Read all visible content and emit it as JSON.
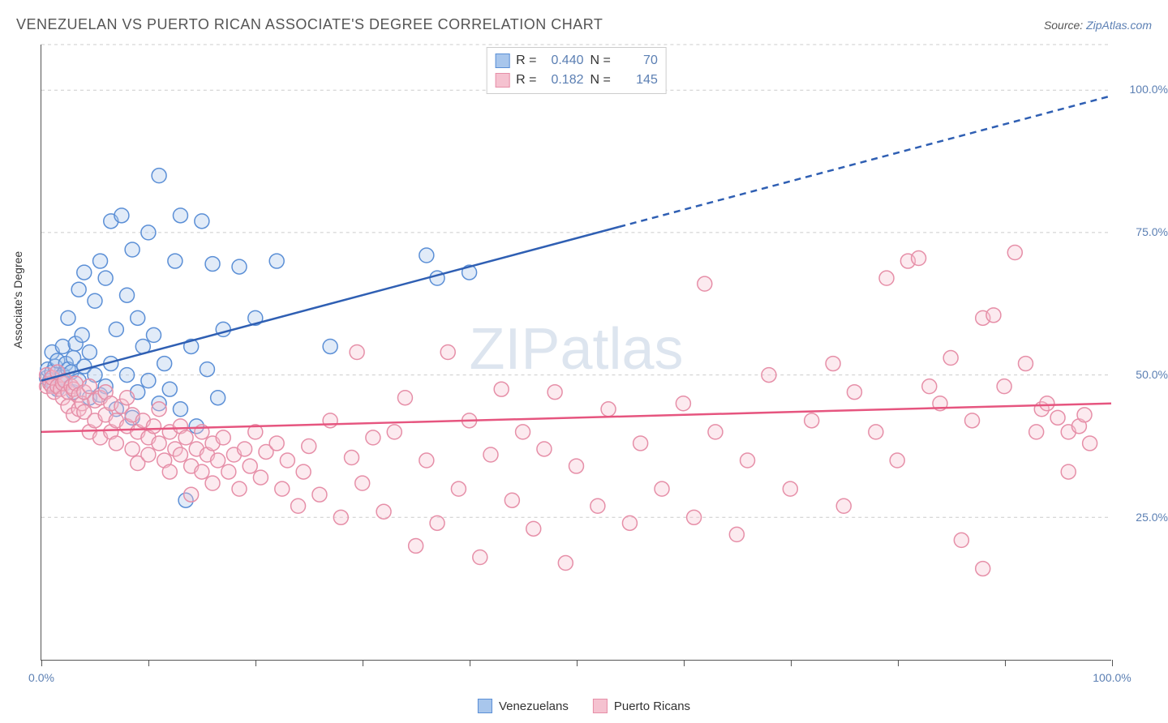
{
  "title": "VENEZUELAN VS PUERTO RICAN ASSOCIATE'S DEGREE CORRELATION CHART",
  "source_label": "Source:",
  "source_name": "ZipAtlas.com",
  "ylabel": "Associate's Degree",
  "watermark": {
    "part1": "ZIP",
    "part2": "atlas"
  },
  "chart": {
    "type": "scatter",
    "background_color": "#ffffff",
    "grid_color": "#cccccc",
    "axis_color": "#555555",
    "tick_label_color": "#5b7fb3",
    "xlim": [
      0,
      100
    ],
    "ylim": [
      0,
      108
    ],
    "xticks": [
      0,
      10,
      20,
      30,
      40,
      50,
      60,
      70,
      80,
      90,
      100
    ],
    "xtick_labels": {
      "0": "0.0%",
      "100": "100.0%"
    },
    "yticks": [
      25,
      50,
      75,
      100,
      108
    ],
    "ytick_labels": {
      "25": "25.0%",
      "50": "50.0%",
      "75": "75.0%",
      "100": "100.0%"
    },
    "marker_radius": 9,
    "marker_stroke_width": 1.5,
    "marker_fill_opacity": 0.35,
    "trend_line_width": 2.5,
    "series": [
      {
        "name": "Venezuelans",
        "color_stroke": "#5b8fd6",
        "color_fill": "#a8c6ec",
        "trend_color": "#2f5fb3",
        "R": "0.440",
        "N": "70",
        "trend": {
          "x1": 0,
          "y1": 49,
          "x2_solid": 54,
          "y2_solid": 76,
          "x2_dash": 100,
          "y2_dash": 99
        },
        "points": [
          [
            0.5,
            49.5
          ],
          [
            0.6,
            51.0
          ],
          [
            0.8,
            49.0
          ],
          [
            1.0,
            50.5
          ],
          [
            1.0,
            54.0
          ],
          [
            1.2,
            48.0
          ],
          [
            1.3,
            51.5
          ],
          [
            1.5,
            47.5
          ],
          [
            1.5,
            52.5
          ],
          [
            1.8,
            49.5
          ],
          [
            2.0,
            50.0
          ],
          [
            2.0,
            55.0
          ],
          [
            2.2,
            48.5
          ],
          [
            2.3,
            52.0
          ],
          [
            2.5,
            51.0
          ],
          [
            2.5,
            60.0
          ],
          [
            2.8,
            50.5
          ],
          [
            3.0,
            53.0
          ],
          [
            3.0,
            47.0
          ],
          [
            3.2,
            55.5
          ],
          [
            3.5,
            49.0
          ],
          [
            3.5,
            65.0
          ],
          [
            3.8,
            57.0
          ],
          [
            4.0,
            51.5
          ],
          [
            4.0,
            68.0
          ],
          [
            4.5,
            54.0
          ],
          [
            4.5,
            46.0
          ],
          [
            5.0,
            50.0
          ],
          [
            5.0,
            63.0
          ],
          [
            5.5,
            46.5
          ],
          [
            5.5,
            70.0
          ],
          [
            6.0,
            48.0
          ],
          [
            6.0,
            67.0
          ],
          [
            6.5,
            52.0
          ],
          [
            6.5,
            77.0
          ],
          [
            7.0,
            44.0
          ],
          [
            7.0,
            58.0
          ],
          [
            7.5,
            78.0
          ],
          [
            8.0,
            50.0
          ],
          [
            8.0,
            64.0
          ],
          [
            8.5,
            42.5
          ],
          [
            8.5,
            72.0
          ],
          [
            9.0,
            47.0
          ],
          [
            9.0,
            60.0
          ],
          [
            9.5,
            55.0
          ],
          [
            10.0,
            49.0
          ],
          [
            10.0,
            75.0
          ],
          [
            10.5,
            57.0
          ],
          [
            11.0,
            45.0
          ],
          [
            11.0,
            85.0
          ],
          [
            11.5,
            52.0
          ],
          [
            12.0,
            47.5
          ],
          [
            12.5,
            70.0
          ],
          [
            13.0,
            44.0
          ],
          [
            13.0,
            78.0
          ],
          [
            14.0,
            55.0
          ],
          [
            14.5,
            41.0
          ],
          [
            15.0,
            77.0
          ],
          [
            15.5,
            51.0
          ],
          [
            16.0,
            69.5
          ],
          [
            16.5,
            46.0
          ],
          [
            17.0,
            58.0
          ],
          [
            18.5,
            69.0
          ],
          [
            20.0,
            60.0
          ],
          [
            22.0,
            70.0
          ],
          [
            27.0,
            55.0
          ],
          [
            36.0,
            71.0
          ],
          [
            37.0,
            67.0
          ],
          [
            40.0,
            68.0
          ],
          [
            13.5,
            28.0
          ]
        ]
      },
      {
        "name": "Puerto Ricans",
        "color_stroke": "#e68fa8",
        "color_fill": "#f5c2d0",
        "trend_color": "#e6557f",
        "R": "0.182",
        "N": "145",
        "trend": {
          "x1": 0,
          "y1": 40,
          "x2_solid": 100,
          "y2_solid": 45,
          "x2_dash": 100,
          "y2_dash": 45
        },
        "points": [
          [
            0.5,
            48.0
          ],
          [
            0.5,
            50.0
          ],
          [
            0.8,
            48.5
          ],
          [
            1.0,
            48.0
          ],
          [
            1.0,
            49.5
          ],
          [
            1.2,
            47.0
          ],
          [
            1.5,
            48.0
          ],
          [
            1.5,
            50.5
          ],
          [
            1.8,
            47.5
          ],
          [
            2.0,
            48.5
          ],
          [
            2.0,
            46.0
          ],
          [
            2.2,
            49.0
          ],
          [
            2.5,
            47.0
          ],
          [
            2.5,
            44.5
          ],
          [
            2.8,
            48.0
          ],
          [
            3.0,
            47.5
          ],
          [
            3.0,
            43.0
          ],
          [
            3.2,
            48.5
          ],
          [
            3.5,
            44.0
          ],
          [
            3.5,
            46.5
          ],
          [
            3.8,
            45.0
          ],
          [
            4.0,
            47.0
          ],
          [
            4.0,
            43.5
          ],
          [
            4.5,
            48.0
          ],
          [
            4.5,
            40.0
          ],
          [
            5.0,
            45.5
          ],
          [
            5.0,
            42.0
          ],
          [
            5.5,
            46.0
          ],
          [
            5.5,
            39.0
          ],
          [
            6.0,
            43.0
          ],
          [
            6.0,
            47.0
          ],
          [
            6.5,
            40.0
          ],
          [
            6.5,
            45.0
          ],
          [
            7.0,
            42.0
          ],
          [
            7.0,
            38.0
          ],
          [
            7.5,
            44.5
          ],
          [
            8.0,
            41.0
          ],
          [
            8.0,
            46.0
          ],
          [
            8.5,
            37.0
          ],
          [
            8.5,
            43.0
          ],
          [
            9.0,
            40.0
          ],
          [
            9.0,
            34.5
          ],
          [
            9.5,
            42.0
          ],
          [
            10.0,
            39.0
          ],
          [
            10.0,
            36.0
          ],
          [
            10.5,
            41.0
          ],
          [
            11.0,
            38.0
          ],
          [
            11.0,
            44.0
          ],
          [
            11.5,
            35.0
          ],
          [
            12.0,
            40.0
          ],
          [
            12.0,
            33.0
          ],
          [
            12.5,
            37.0
          ],
          [
            13.0,
            41.0
          ],
          [
            13.0,
            36.0
          ],
          [
            13.5,
            39.0
          ],
          [
            14.0,
            34.0
          ],
          [
            14.0,
            29.0
          ],
          [
            14.5,
            37.0
          ],
          [
            15.0,
            40.0
          ],
          [
            15.0,
            33.0
          ],
          [
            15.5,
            36.0
          ],
          [
            16.0,
            31.0
          ],
          [
            16.0,
            38.0
          ],
          [
            16.5,
            35.0
          ],
          [
            17.0,
            39.0
          ],
          [
            17.5,
            33.0
          ],
          [
            18.0,
            36.0
          ],
          [
            18.5,
            30.0
          ],
          [
            19.0,
            37.0
          ],
          [
            19.5,
            34.0
          ],
          [
            20.0,
            40.0
          ],
          [
            20.5,
            32.0
          ],
          [
            21.0,
            36.5
          ],
          [
            22.0,
            38.0
          ],
          [
            22.5,
            30.0
          ],
          [
            23.0,
            35.0
          ],
          [
            24.0,
            27.0
          ],
          [
            24.5,
            33.0
          ],
          [
            25.0,
            37.5
          ],
          [
            26.0,
            29.0
          ],
          [
            27.0,
            42.0
          ],
          [
            28.0,
            25.0
          ],
          [
            29.0,
            35.5
          ],
          [
            29.5,
            54.0
          ],
          [
            30.0,
            31.0
          ],
          [
            31.0,
            39.0
          ],
          [
            32.0,
            26.0
          ],
          [
            33.0,
            40.0
          ],
          [
            34.0,
            46.0
          ],
          [
            35.0,
            20.0
          ],
          [
            36.0,
            35.0
          ],
          [
            37.0,
            24.0
          ],
          [
            38.0,
            54.0
          ],
          [
            39.0,
            30.0
          ],
          [
            40.0,
            42.0
          ],
          [
            41.0,
            18.0
          ],
          [
            42.0,
            36.0
          ],
          [
            43.0,
            47.5
          ],
          [
            44.0,
            28.0
          ],
          [
            45.0,
            40.0
          ],
          [
            46.0,
            23.0
          ],
          [
            47.0,
            37.0
          ],
          [
            48.0,
            47.0
          ],
          [
            49.0,
            17.0
          ],
          [
            50.0,
            34.0
          ],
          [
            52.0,
            27.0
          ],
          [
            53.0,
            44.0
          ],
          [
            55.0,
            24.0
          ],
          [
            56.0,
            38.0
          ],
          [
            58.0,
            30.0
          ],
          [
            60.0,
            45.0
          ],
          [
            61.0,
            25.0
          ],
          [
            62.0,
            66.0
          ],
          [
            63.0,
            40.0
          ],
          [
            65.0,
            22.0
          ],
          [
            66.0,
            35.0
          ],
          [
            68.0,
            50.0
          ],
          [
            70.0,
            30.0
          ],
          [
            72.0,
            42.0
          ],
          [
            74.0,
            52.0
          ],
          [
            75.0,
            27.0
          ],
          [
            76.0,
            47.0
          ],
          [
            78.0,
            40.0
          ],
          [
            79.0,
            67.0
          ],
          [
            80.0,
            35.0
          ],
          [
            81.0,
            70.0
          ],
          [
            82.0,
            70.5
          ],
          [
            83.0,
            48.0
          ],
          [
            84.0,
            45.0
          ],
          [
            85.0,
            53.0
          ],
          [
            86.0,
            21.0
          ],
          [
            87.0,
            42.0
          ],
          [
            88.0,
            60.0
          ],
          [
            89.0,
            60.5
          ],
          [
            90.0,
            48.0
          ],
          [
            91.0,
            71.5
          ],
          [
            92.0,
            52.0
          ],
          [
            93.0,
            40.0
          ],
          [
            93.5,
            44.0
          ],
          [
            94.0,
            45.0
          ],
          [
            95.0,
            42.5
          ],
          [
            96.0,
            40.0
          ],
          [
            97.0,
            41.0
          ],
          [
            97.5,
            43.0
          ],
          [
            98.0,
            38.0
          ],
          [
            88.0,
            16.0
          ],
          [
            96.0,
            33.0
          ]
        ]
      }
    ]
  },
  "stats_legend": {
    "labels": {
      "R": "R =",
      "N": "N ="
    }
  },
  "bottom_legend": {
    "items": [
      "Venezuelans",
      "Puerto Ricans"
    ]
  }
}
